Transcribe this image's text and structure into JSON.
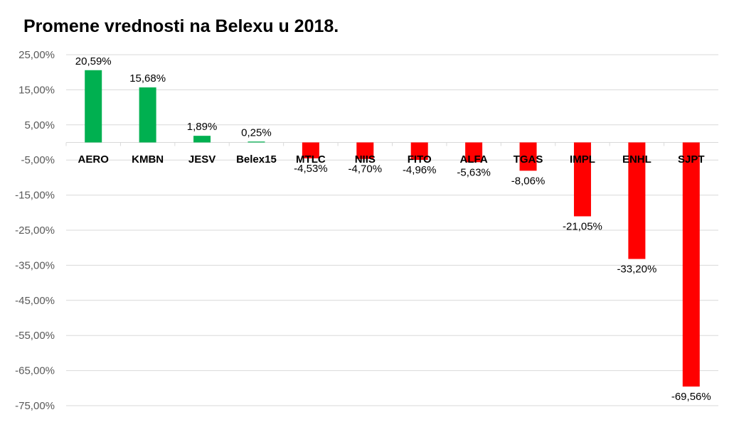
{
  "chart_data": {
    "type": "bar",
    "title": "Promene vrednosti na Belexu u 2018.",
    "categories": [
      "AERO",
      "KMBN",
      "JESV",
      "Belex15",
      "MTLC",
      "NIIS",
      "FITO",
      "ALFA",
      "TGAS",
      "IMPL",
      "ENHL",
      "SJPT"
    ],
    "values": [
      20.59,
      15.68,
      1.89,
      0.25,
      -4.53,
      -4.7,
      -4.96,
      -5.63,
      -8.06,
      -21.05,
      -33.2,
      -69.56
    ],
    "data_labels": [
      "20,59%",
      "15,68%",
      "1,89%",
      "0,25%",
      "-4,53%",
      "-4,70%",
      "-4,96%",
      "-5,63%",
      "-8,06%",
      "-21,05%",
      "-33,20%",
      "-69,56%"
    ],
    "yticks": [
      25,
      15,
      5,
      -5,
      -15,
      -25,
      -35,
      -45,
      -55,
      -65,
      -75
    ],
    "ytick_labels": [
      "25,00%",
      "15,00%",
      "5,00%",
      "-5,00%",
      "-15,00%",
      "-25,00%",
      "-35,00%",
      "-45,00%",
      "-55,00%",
      "-65,00%",
      "-75,00%"
    ],
    "ylim": [
      -75,
      25
    ],
    "grid": true,
    "colors": {
      "positive": "#00b050",
      "negative": "#ff0000"
    },
    "xlabel": "",
    "ylabel": ""
  }
}
